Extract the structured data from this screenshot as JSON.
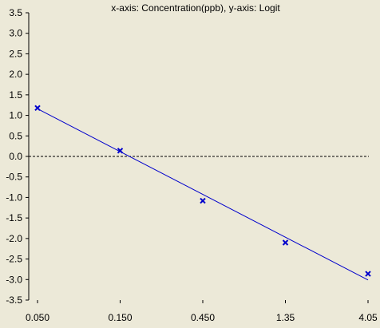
{
  "chart_data": {
    "type": "scatter",
    "title": "x-axis: Concentration(ppb), y-axis: Logit",
    "x_tick_labels": [
      "0.050",
      "0.150",
      "0.450",
      "1.35",
      "4.05"
    ],
    "x_scale": "log",
    "y_ticks": [
      3.5,
      3.0,
      2.5,
      2.0,
      1.5,
      1.0,
      0.5,
      0.0,
      -0.5,
      -1.0,
      -1.5,
      -2.0,
      -2.5,
      -3.0,
      -3.5
    ],
    "y_tick_labels": [
      "3.5",
      "3.0",
      "2.5",
      "2.0",
      "1.5",
      "1.0",
      "0.5",
      "0.0",
      "-0.5",
      "-1.0",
      "-1.5",
      "-2.0",
      "-2.5",
      "-3.0",
      "-3.5"
    ],
    "ylim": [
      -3.5,
      3.5
    ],
    "series": [
      {
        "marker": "x",
        "color": "#0000cc",
        "points": [
          {
            "x": 0.05,
            "y": 1.18
          },
          {
            "x": 0.15,
            "y": 0.14
          },
          {
            "x": 0.45,
            "y": -1.08
          },
          {
            "x": 1.35,
            "y": -2.1
          },
          {
            "x": 4.05,
            "y": -2.86
          }
        ]
      }
    ],
    "fit_line": {
      "color": "#0000cc",
      "from": {
        "x": 0.05,
        "y": 1.16
      },
      "to": {
        "x": 4.05,
        "y": -3.01
      }
    },
    "reference_line": {
      "y": 0.0,
      "style": "dashed",
      "color": "#000000"
    },
    "grid": false,
    "background": "#ece9d8"
  }
}
